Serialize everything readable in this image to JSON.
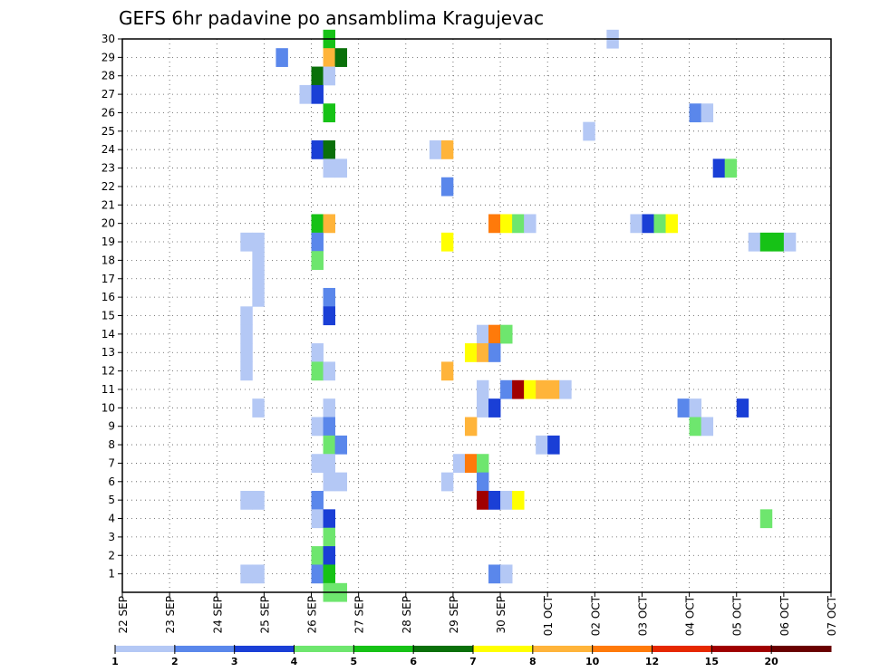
{
  "chart_data": {
    "type": "heatmap",
    "title": "GEFS 6hr padavine po ansamblima Kragujevac",
    "x_ticks": [
      "22 SEP",
      "23 SEP",
      "24 SEP",
      "25 SEP",
      "26 SEP",
      "27 SEP",
      "28 SEP",
      "29 SEP",
      "30 SEP",
      "01 OCT",
      "02 OCT",
      "03 OCT",
      "04 OCT",
      "05 OCT",
      "06 OCT",
      "07 OCT"
    ],
    "y_ticks": [
      1,
      2,
      3,
      4,
      5,
      6,
      7,
      8,
      9,
      10,
      11,
      12,
      13,
      14,
      15,
      16,
      17,
      18,
      19,
      20,
      21,
      22,
      23,
      24,
      25,
      26,
      27,
      28,
      29,
      30
    ],
    "x_range_days": [
      0,
      15
    ],
    "y_range": [
      0,
      30
    ],
    "time_step_hours": 6,
    "grid": true,
    "colorbar": {
      "boundaries": [
        "1",
        "2",
        "3",
        "4",
        "5",
        "6",
        "7",
        "8",
        "10",
        "12",
        "15",
        "20"
      ],
      "colors": [
        "#b4c8f5",
        "#5a87eb",
        "#1a3fd6",
        "#6ee66e",
        "#16c216",
        "#0a700a",
        "#ffff00",
        "#ffb43a",
        "#ff7a0a",
        "#e62800",
        "#a00000",
        "#6a0000"
      ]
    },
    "cells_note": "cells: [member, day offset from 22 SEP in 6-hour steps, color class index]",
    "cells": [
      [
        30,
        4.25,
        4
      ],
      [
        30,
        10.25,
        0
      ],
      [
        29,
        3.25,
        1
      ],
      [
        29,
        4.25,
        7
      ],
      [
        29,
        4.5,
        5
      ],
      [
        28,
        4,
        5
      ],
      [
        28,
        4.25,
        0
      ],
      [
        27,
        3.75,
        0
      ],
      [
        27,
        4,
        2
      ],
      [
        26,
        4.25,
        4
      ],
      [
        26,
        12,
        1
      ],
      [
        26,
        12.25,
        0
      ],
      [
        25,
        9.75,
        0
      ],
      [
        24,
        4,
        2
      ],
      [
        24,
        4.25,
        5
      ],
      [
        24,
        6.5,
        0
      ],
      [
        24,
        6.75,
        7
      ],
      [
        23,
        4.25,
        0
      ],
      [
        23,
        4.5,
        0
      ],
      [
        23,
        12.5,
        2
      ],
      [
        23,
        12.75,
        3
      ],
      [
        22,
        6.75,
        1
      ],
      [
        20,
        4,
        4
      ],
      [
        20,
        4.25,
        7
      ],
      [
        20,
        7.75,
        8
      ],
      [
        20,
        8,
        6
      ],
      [
        20,
        8.25,
        3
      ],
      [
        20,
        8.5,
        0
      ],
      [
        20,
        10.75,
        0
      ],
      [
        20,
        11,
        2
      ],
      [
        20,
        11.25,
        3
      ],
      [
        20,
        11.5,
        6
      ],
      [
        19,
        2.5,
        0
      ],
      [
        19,
        2.75,
        0
      ],
      [
        19,
        4,
        1
      ],
      [
        19,
        6.75,
        6
      ],
      [
        19,
        13.25,
        0
      ],
      [
        19,
        13.5,
        4
      ],
      [
        19,
        13.75,
        4
      ],
      [
        19,
        14,
        0
      ],
      [
        18,
        2.75,
        0
      ],
      [
        18,
        4,
        3
      ],
      [
        17,
        2.75,
        0
      ],
      [
        16,
        2.75,
        0
      ],
      [
        16,
        4.25,
        1
      ],
      [
        15,
        2.5,
        0
      ],
      [
        15,
        4.25,
        2
      ],
      [
        14,
        2.5,
        0
      ],
      [
        14,
        7.5,
        0
      ],
      [
        14,
        7.75,
        8
      ],
      [
        14,
        8,
        3
      ],
      [
        13,
        2.5,
        0
      ],
      [
        13,
        4,
        0
      ],
      [
        13,
        7.25,
        6
      ],
      [
        13,
        7.5,
        7
      ],
      [
        13,
        7.75,
        1
      ],
      [
        12,
        2.5,
        0
      ],
      [
        12,
        4,
        3
      ],
      [
        12,
        4.25,
        0
      ],
      [
        12,
        6.75,
        7
      ],
      [
        11,
        7.5,
        0
      ],
      [
        11,
        8,
        1
      ],
      [
        11,
        8.25,
        10
      ],
      [
        11,
        8.5,
        6
      ],
      [
        11,
        8.75,
        7
      ],
      [
        11,
        9,
        7
      ],
      [
        11,
        9.25,
        0
      ],
      [
        10,
        2.75,
        0
      ],
      [
        10,
        4.25,
        0
      ],
      [
        10,
        7.5,
        0
      ],
      [
        10,
        7.75,
        2
      ],
      [
        10,
        11.75,
        1
      ],
      [
        10,
        12,
        0
      ],
      [
        10,
        13,
        2
      ],
      [
        9,
        4,
        0
      ],
      [
        9,
        4.25,
        1
      ],
      [
        9,
        7.25,
        7
      ],
      [
        9,
        12,
        3
      ],
      [
        9,
        12.25,
        0
      ],
      [
        8,
        4.25,
        3
      ],
      [
        8,
        4.5,
        1
      ],
      [
        8,
        8.75,
        0
      ],
      [
        8,
        9,
        2
      ],
      [
        7,
        4,
        0
      ],
      [
        7,
        4.25,
        0
      ],
      [
        7,
        7,
        0
      ],
      [
        7,
        7.25,
        8
      ],
      [
        7,
        7.5,
        3
      ],
      [
        6,
        4.25,
        0
      ],
      [
        6,
        4.5,
        0
      ],
      [
        6,
        6.75,
        0
      ],
      [
        6,
        7.5,
        1
      ],
      [
        5,
        2.5,
        0
      ],
      [
        5,
        2.75,
        0
      ],
      [
        5,
        4,
        1
      ],
      [
        5,
        7.5,
        10
      ],
      [
        5,
        7.75,
        2
      ],
      [
        5,
        8,
        0
      ],
      [
        5,
        8.25,
        6
      ],
      [
        4,
        4,
        0
      ],
      [
        4,
        4.25,
        2
      ],
      [
        4,
        13.5,
        3
      ],
      [
        3,
        4.25,
        3
      ],
      [
        2,
        4,
        3
      ],
      [
        2,
        4.25,
        2
      ],
      [
        1,
        2.5,
        0
      ],
      [
        1,
        2.75,
        0
      ],
      [
        1,
        4,
        1
      ],
      [
        1,
        4.25,
        4
      ],
      [
        1,
        7.75,
        1
      ],
      [
        1,
        8,
        0
      ],
      [
        0,
        4.25,
        3
      ],
      [
        0,
        4.5,
        3
      ]
    ]
  }
}
